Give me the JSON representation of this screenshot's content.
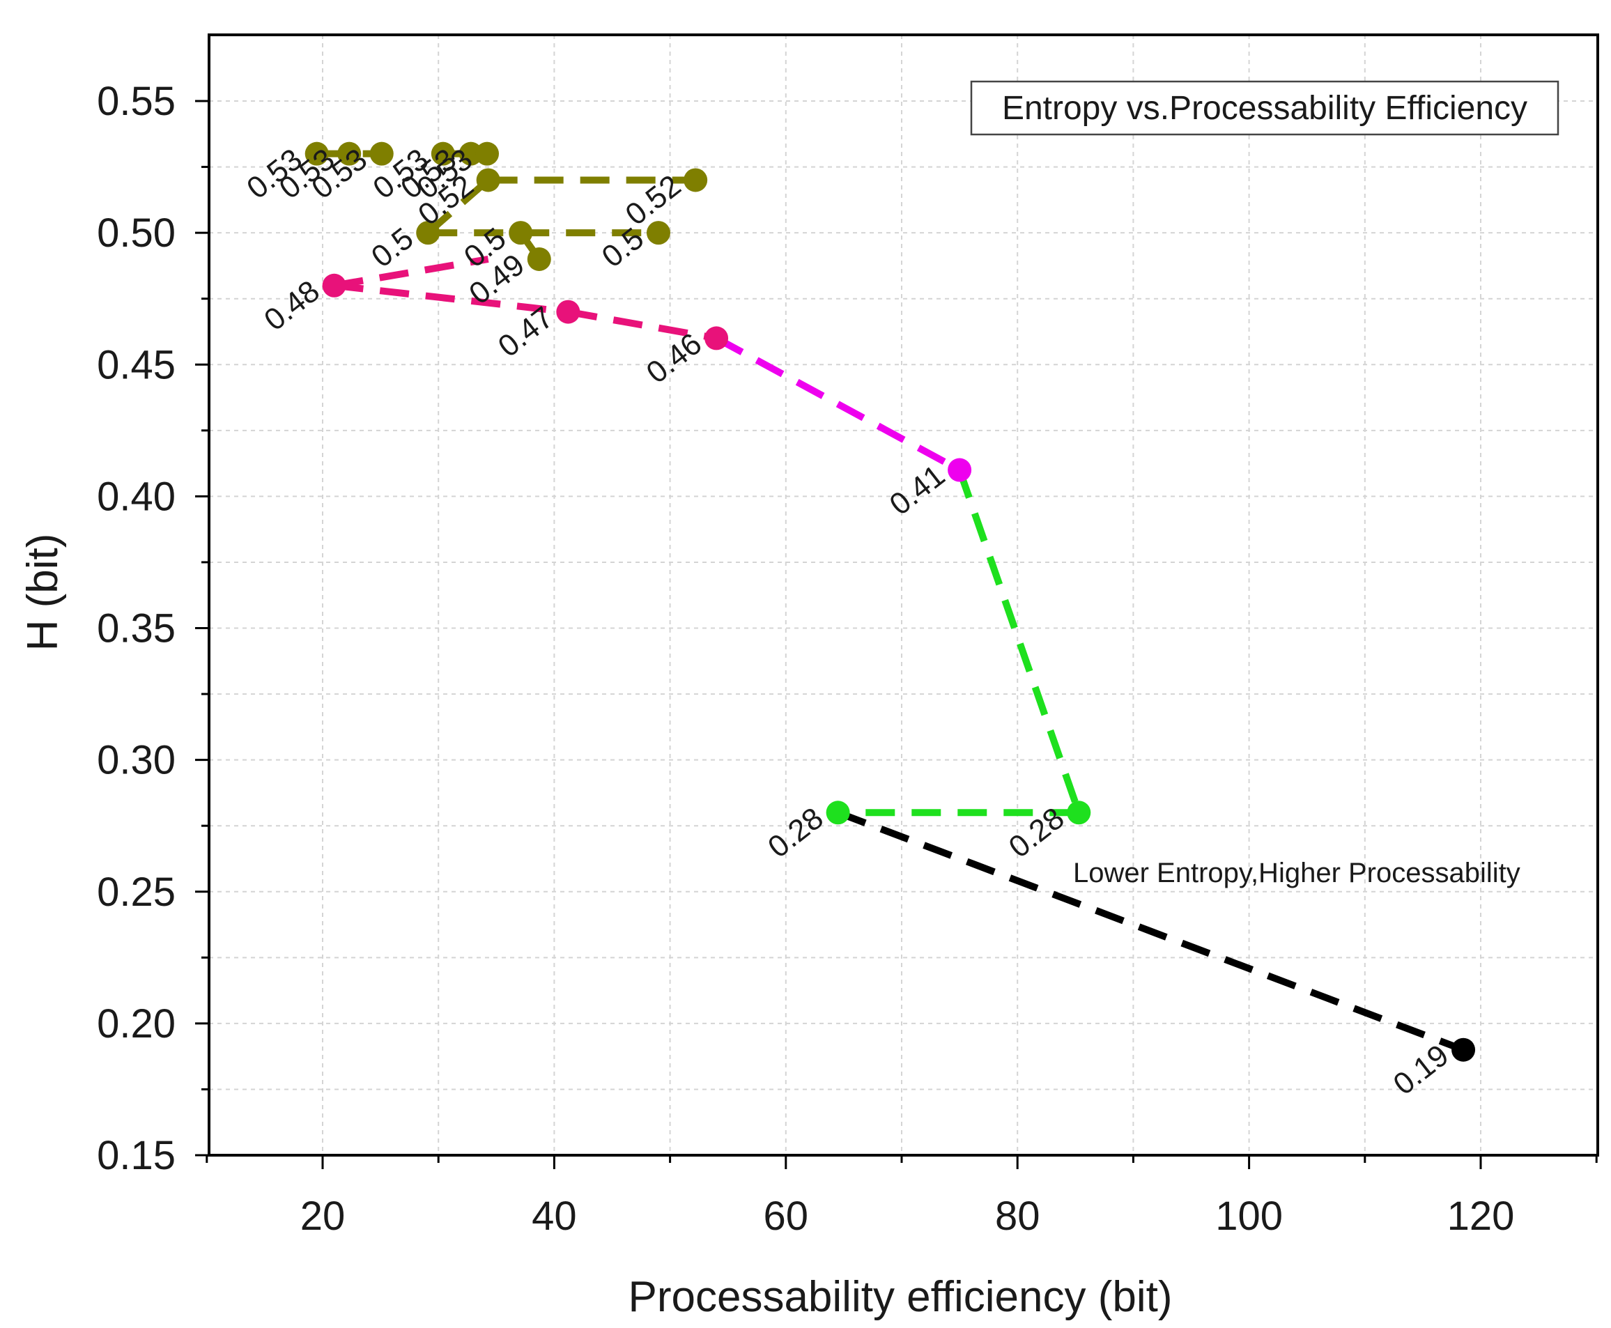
{
  "chart_data": {
    "type": "line",
    "title": "",
    "legend_text": "Entropy vs.Processability Efficiency",
    "legend_position": "top-right",
    "annotation": "Lower Entropy,Higher Processability",
    "xlabel": "Processability efficiency (bit)",
    "ylabel": "H (bit)",
    "xlim": [
      10,
      130
    ],
    "ylim": [
      0.15,
      0.57
    ],
    "x_ticks": [
      20,
      40,
      60,
      80,
      100,
      120
    ],
    "x_tick_labels": [
      "20",
      "40",
      "60",
      "80",
      "100",
      "120"
    ],
    "y_ticks": [
      0.15,
      0.2,
      0.25,
      0.3,
      0.35,
      0.4,
      0.45,
      0.5,
      0.55
    ],
    "y_tick_labels": [
      "0.15",
      "0.20",
      "0.25",
      "0.30",
      "0.35",
      "0.40",
      "0.45",
      "0.50",
      "0.55"
    ],
    "grid": true,
    "series": [
      {
        "color": "#7f7f00",
        "points": [
          {
            "x": 19.5,
            "y": 0.53,
            "label": "0.53"
          },
          {
            "x": 22.3,
            "y": 0.53,
            "label": "0.53"
          },
          {
            "x": 25.1,
            "y": 0.53,
            "label": "0.53"
          },
          {
            "x": 30.4,
            "y": 0.53,
            "label": "0.53"
          },
          {
            "x": 32.8,
            "y": 0.53,
            "label": "0.53"
          },
          {
            "x": 34.2,
            "y": 0.53,
            "label": "0.53"
          },
          {
            "x": 34.3,
            "y": 0.52,
            "label": "0.52"
          },
          {
            "x": 52.2,
            "y": 0.52,
            "label": "0.52"
          },
          {
            "x": 29.1,
            "y": 0.5,
            "label": "0.5"
          },
          {
            "x": 37.1,
            "y": 0.5,
            "label": "0.5"
          },
          {
            "x": 49.0,
            "y": 0.5,
            "label": "0.5"
          },
          {
            "x": 38.7,
            "y": 0.49,
            "label": "0.49"
          }
        ]
      },
      {
        "color": "#e8127a",
        "points": [
          {
            "x": 21.0,
            "y": 0.48,
            "label": "0.48"
          },
          {
            "x": 41.2,
            "y": 0.47,
            "label": "0.47"
          },
          {
            "x": 54.0,
            "y": 0.46,
            "label": "0.46"
          }
        ]
      },
      {
        "color": "#ee00ee",
        "points": [
          {
            "x": 75.0,
            "y": 0.41,
            "label": "0.41"
          }
        ]
      },
      {
        "color": "#1ee01e",
        "points": [
          {
            "x": 85.3,
            "y": 0.28,
            "label": "0.28"
          },
          {
            "x": 64.5,
            "y": 0.28,
            "label": "0.28"
          }
        ]
      },
      {
        "color": "#000000",
        "points": [
          {
            "x": 118.5,
            "y": 0.19,
            "label": "0.19"
          }
        ]
      }
    ]
  }
}
